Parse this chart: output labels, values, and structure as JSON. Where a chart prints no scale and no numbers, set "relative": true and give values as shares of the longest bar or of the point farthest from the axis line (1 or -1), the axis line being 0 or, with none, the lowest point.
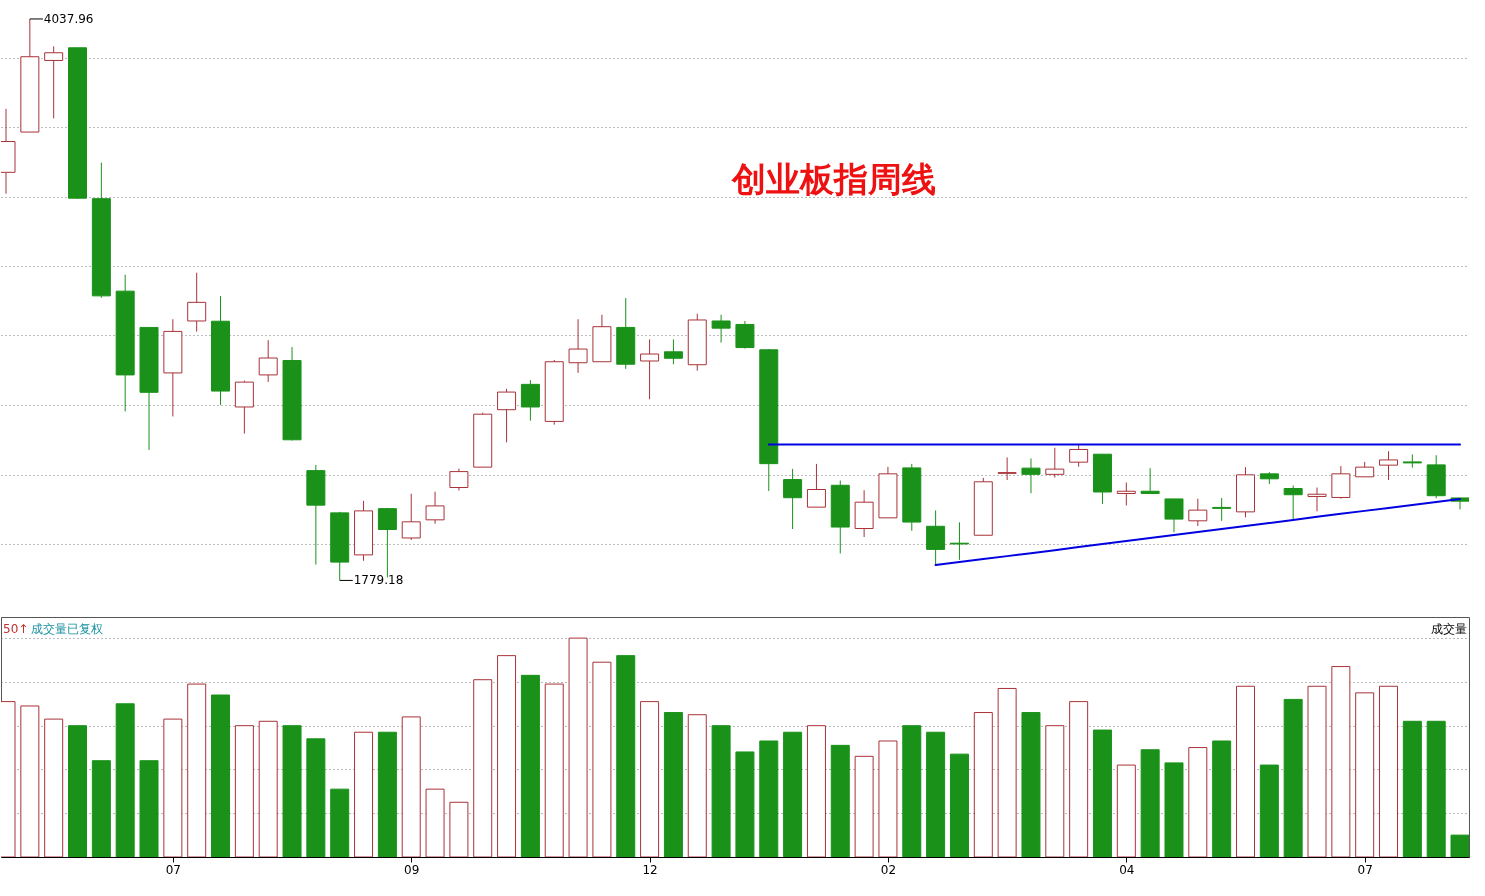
{
  "chart_data": [
    {
      "type": "candlestick",
      "title": "创业板指周线",
      "categories": [
        null,
        null,
        null,
        null,
        null,
        null,
        null,
        null,
        null,
        null,
        null,
        null,
        null,
        null,
        null,
        null,
        null,
        null,
        null,
        null,
        null,
        null,
        null,
        null,
        null,
        null,
        null,
        null,
        null,
        null,
        null,
        null,
        null,
        null,
        null,
        null,
        null,
        null,
        null,
        null,
        null,
        null,
        null,
        null,
        null,
        null,
        null,
        null,
        null,
        null,
        null,
        null,
        null,
        null,
        null,
        null,
        null,
        null,
        null,
        null,
        null,
        null
      ],
      "ohlc": [
        [
          3421,
          3676,
          3335,
          3545
        ],
        [
          3583,
          4037.96,
          3583,
          3886
        ],
        [
          3871,
          3928,
          3638,
          3902
        ],
        [
          3922,
          3922,
          3314,
          3317
        ],
        [
          3315,
          3460,
          2916,
          2924
        ],
        [
          2943,
          3009,
          2459,
          2606
        ],
        [
          2797,
          2797,
          2304,
          2536
        ],
        [
          2614,
          2830,
          2439,
          2781
        ],
        [
          2823,
          3017,
          2780,
          2898
        ],
        [
          2822,
          2923,
          2485,
          2541
        ],
        [
          2477,
          2583,
          2370,
          2577
        ],
        [
          2606,
          2746,
          2578,
          2674
        ],
        [
          2664,
          2718,
          2342,
          2345
        ],
        [
          2221,
          2244,
          1843,
          2082
        ],
        [
          2051,
          2055,
          1779.18,
          1853
        ],
        [
          1882,
          2099,
          1858,
          2059
        ],
        [
          2068,
          2071,
          1791,
          1984
        ],
        [
          1950,
          2128,
          1942,
          2015
        ],
        [
          2023,
          2136,
          2007,
          2079
        ],
        [
          2153,
          2229,
          2141,
          2217
        ],
        [
          2235,
          2454,
          2235,
          2448
        ],
        [
          2466,
          2550,
          2335,
          2537
        ],
        [
          2568,
          2585,
          2422,
          2477
        ],
        [
          2419,
          2666,
          2406,
          2659
        ],
        [
          2655,
          2830,
          2614,
          2710
        ],
        [
          2659,
          2848,
          2659,
          2800
        ],
        [
          2797,
          2915,
          2630,
          2649
        ],
        [
          2662,
          2749,
          2508,
          2690
        ],
        [
          2699,
          2749,
          2649,
          2673
        ],
        [
          2647,
          2852,
          2623,
          2827
        ],
        [
          2823,
          2848,
          2736,
          2794
        ],
        [
          2809,
          2823,
          2712,
          2716
        ],
        [
          2707,
          2710,
          2139,
          2249
        ],
        [
          2185,
          2228,
          1986,
          2112
        ],
        [
          2074,
          2248,
          2074,
          2145
        ],
        [
          2162,
          2181,
          1888,
          1994
        ],
        [
          1988,
          2142,
          1954,
          2094
        ],
        [
          2031,
          2236,
          2031,
          2208
        ],
        [
          2232,
          2248,
          1979,
          2014
        ],
        [
          1997,
          2061,
          1841,
          1904
        ],
        [
          1929,
          2013,
          1862,
          1926
        ],
        [
          1961,
          2192,
          1961,
          2176
        ],
        [
          2210,
          2274,
          2183,
          2213
        ],
        [
          2231,
          2270,
          2130,
          2206
        ],
        [
          2206,
          2313,
          2193,
          2227
        ],
        [
          2255,
          2326,
          2237,
          2306
        ],
        [
          2287,
          2287,
          2087,
          2135
        ],
        [
          2129,
          2173,
          2081,
          2138
        ],
        [
          2138,
          2231,
          2129,
          2129
        ],
        [
          2107,
          2107,
          1973,
          2026
        ],
        [
          2019,
          2108,
          1998,
          2062
        ],
        [
          2073,
          2111,
          2019,
          2069
        ],
        [
          2055,
          2235,
          2033,
          2204
        ],
        [
          2208,
          2215,
          2167,
          2188
        ],
        [
          2149,
          2161,
          2026,
          2124
        ],
        [
          2117,
          2153,
          2057,
          2126
        ],
        [
          2113,
          2239,
          2108,
          2208
        ],
        [
          2196,
          2256,
          2196,
          2235
        ],
        [
          2243,
          2299,
          2183,
          2264
        ],
        [
          2256,
          2286,
          2233,
          2252
        ],
        [
          2244,
          2283,
          2110,
          2120
        ],
        [
          2111,
          2111,
          2065,
          2098
        ]
      ],
      "colors": [
        "#a83238",
        "#a83238",
        "#a83238",
        "#1a921a",
        "#1a921a",
        "#1a921a",
        "#1a921a",
        "#a83238",
        "#a83238",
        "#1a921a",
        "#a83238",
        "#a83238",
        "#1a921a",
        "#1a921a",
        "#1a921a",
        "#a83238",
        "#1a921a",
        "#a83238",
        "#a83238",
        "#a83238",
        "#a83238",
        "#a83238",
        "#1a921a",
        "#a83238",
        "#a83238",
        "#a83238",
        "#1a921a",
        "#a83238",
        "#1a921a",
        "#a83238",
        "#1a921a",
        "#1a921a",
        "#1a921a",
        "#1a921a",
        "#a83238",
        "#1a921a",
        "#a83238",
        "#a83238",
        "#1a921a",
        "#1a921a",
        "#1a921a",
        "#a83238",
        "#a83238",
        "#1a921a",
        "#a83238",
        "#a83238",
        "#1a921a",
        "#a83238",
        "#1a921a",
        "#1a921a",
        "#a83238",
        "#1a921a",
        "#a83238",
        "#1a921a",
        "#1a921a",
        "#a83238",
        "#a83238",
        "#a83238",
        "#a83238",
        "#1a921a",
        "#1a921a",
        "#1a921a"
      ],
      "series": [
        {
          "type": "line",
          "color": "#0000e0",
          "values": [
            null,
            null,
            null,
            null,
            null,
            null,
            null,
            null,
            null,
            null,
            null,
            null,
            null,
            null,
            null,
            null,
            null,
            null,
            null,
            null,
            null,
            null,
            null,
            null,
            null,
            null,
            null,
            null,
            null,
            null,
            null,
            null,
            2326,
            2326,
            2326,
            2326,
            2326,
            2326,
            2326,
            2326,
            2326,
            2326,
            2326,
            2326,
            2326,
            2326,
            2326,
            2326,
            2326,
            2326,
            2326,
            2326,
            2326,
            2326,
            2326,
            2326,
            2326,
            2326,
            2326,
            2326,
            2326,
            2326
          ]
        },
        {
          "type": "line",
          "color": "#0000e0",
          "values": [
            null,
            null,
            null,
            null,
            null,
            null,
            null,
            null,
            null,
            null,
            null,
            null,
            null,
            null,
            null,
            null,
            null,
            null,
            null,
            null,
            null,
            null,
            null,
            null,
            null,
            null,
            null,
            null,
            null,
            null,
            null,
            null,
            null,
            null,
            null,
            null,
            null,
            null,
            null,
            1841,
            1853,
            1865,
            1877,
            1889,
            1901,
            1914,
            1926,
            1938,
            1950,
            1962,
            1974,
            1986,
            1998,
            2010,
            2022,
            2035,
            2047,
            2059,
            2071,
            2083,
            2095,
            2107
          ]
        }
      ],
      "yticks": [
        {
          "value": 1925,
          "label": null
        },
        {
          "value": 2204,
          "label": null
        },
        {
          "value": 2483,
          "label": null
        },
        {
          "value": 2766,
          "label": null
        },
        {
          "value": 3043,
          "label": null
        },
        {
          "value": 3321,
          "label": null
        },
        {
          "value": 3603,
          "label": null
        },
        {
          "value": 3882,
          "label": null
        }
      ],
      "grid": "y",
      "tick_labels": false,
      "annotations": [
        "4037.96",
        "1779.18"
      ]
    },
    {
      "type": "bar",
      "relative": true,
      "grid": "y",
      "categories": [
        null,
        null,
        null,
        null,
        null,
        null,
        null,
        "07",
        null,
        null,
        null,
        null,
        null,
        null,
        null,
        null,
        null,
        "09",
        null,
        null,
        null,
        null,
        null,
        null,
        null,
        null,
        null,
        "12",
        null,
        null,
        null,
        null,
        null,
        null,
        null,
        null,
        null,
        "02",
        null,
        null,
        null,
        null,
        null,
        null,
        null,
        null,
        null,
        "04",
        null,
        null,
        null,
        null,
        null,
        null,
        null,
        null,
        null,
        "07",
        null,
        null,
        null,
        null
      ],
      "series": [
        {
          "color": "#a83238",
          "values": [
            0.71,
            0.69,
            0.63,
            null,
            null,
            null,
            null,
            0.63,
            0.79,
            null,
            0.6,
            0.62,
            null,
            null,
            null,
            0.57,
            null,
            0.64,
            0.31,
            0.25,
            0.81,
            0.92,
            null,
            0.79,
            1,
            0.89,
            null,
            0.71,
            null,
            0.65,
            null,
            null,
            null,
            null,
            0.6,
            null,
            0.46,
            0.53,
            null,
            null,
            null,
            0.66,
            0.77,
            null,
            0.6,
            0.71,
            null,
            0.42,
            null,
            null,
            0.5,
            null,
            0.78,
            null,
            null,
            0.78,
            0.87,
            0.75,
            0.78,
            null,
            null,
            null
          ]
        },
        {
          "color": "#1a921a",
          "values": [
            null,
            null,
            null,
            0.6,
            0.44,
            0.7,
            0.44,
            null,
            null,
            0.74,
            null,
            null,
            0.6,
            0.54,
            0.31,
            null,
            0.57,
            null,
            null,
            null,
            null,
            null,
            0.83,
            null,
            null,
            null,
            0.92,
            null,
            0.66,
            null,
            0.6,
            0.48,
            0.53,
            0.57,
            null,
            0.51,
            null,
            null,
            0.6,
            0.57,
            0.47,
            null,
            null,
            0.66,
            null,
            null,
            0.58,
            null,
            0.49,
            0.43,
            null,
            0.53,
            null,
            0.42,
            0.72,
            null,
            null,
            null,
            null,
            0.62,
            0.62,
            0.1
          ]
        }
      ],
      "annotations": [
        "50↑",
        "成交量已复权",
        "成交量"
      ]
    }
  ]
}
